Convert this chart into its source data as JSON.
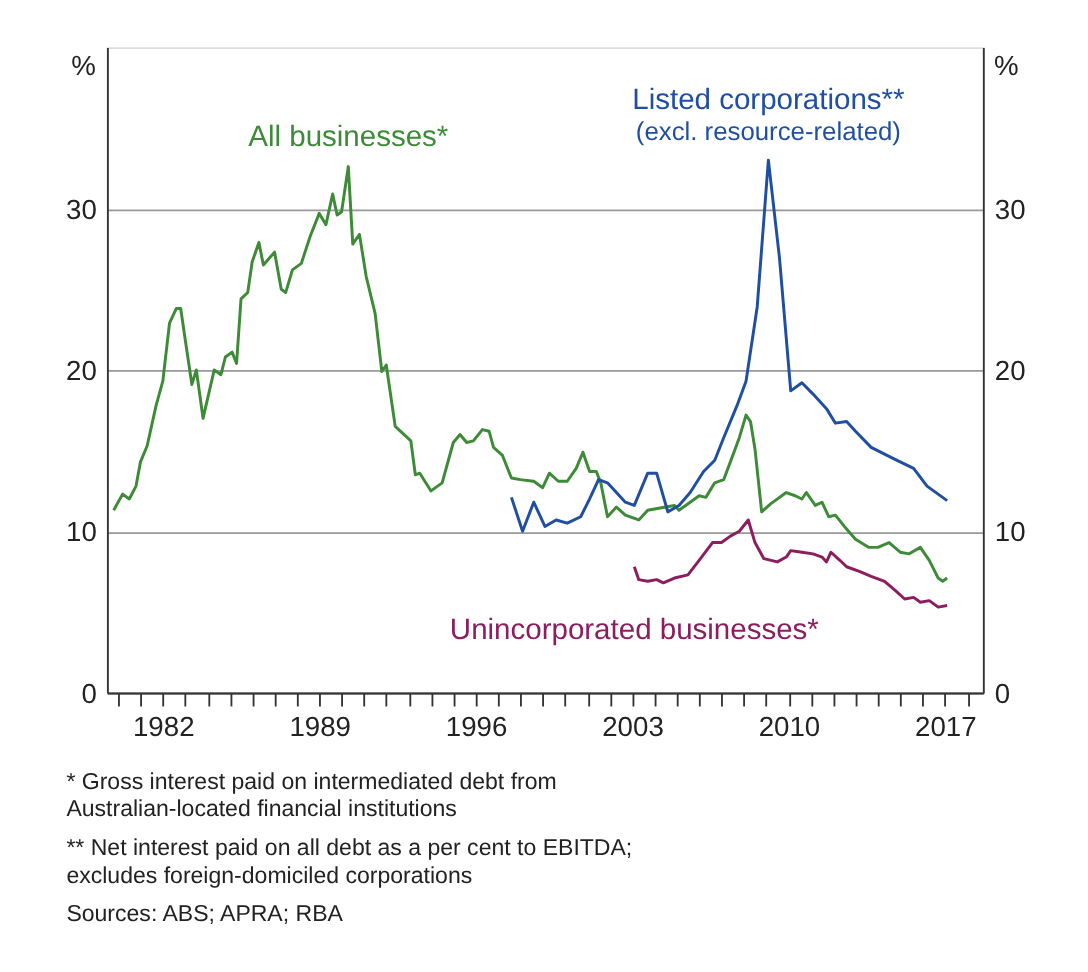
{
  "chart_data": {
    "type": "line",
    "ylabel": "%",
    "y2label": "%",
    "xlim": [
      1979.5,
      2018.7
    ],
    "xticks": [
      {
        "value": 1980,
        "label": null
      },
      {
        "value": 1981,
        "label": null
      },
      1982,
      {
        "value": 1983,
        "label": null
      },
      {
        "value": 1984,
        "label": null
      },
      {
        "value": 1985,
        "label": null
      },
      {
        "value": 1986,
        "label": null
      },
      {
        "value": 1987,
        "label": null
      },
      {
        "value": 1988,
        "label": null
      },
      1989,
      {
        "value": 1990,
        "label": null
      },
      {
        "value": 1991,
        "label": null
      },
      {
        "value": 1992,
        "label": null
      },
      {
        "value": 1993,
        "label": null
      },
      {
        "value": 1994,
        "label": null
      },
      {
        "value": 1995,
        "label": null
      },
      1996,
      {
        "value": 1997,
        "label": null
      },
      {
        "value": 1998,
        "label": null
      },
      {
        "value": 1999,
        "label": null
      },
      {
        "value": 2000,
        "label": null
      },
      {
        "value": 2001,
        "label": null
      },
      {
        "value": 2002,
        "label": null
      },
      2003,
      {
        "value": 2004,
        "label": null
      },
      {
        "value": 2005,
        "label": null
      },
      {
        "value": 2006,
        "label": null
      },
      {
        "value": 2007,
        "label": null
      },
      {
        "value": 2008,
        "label": null
      },
      {
        "value": 2009,
        "label": null
      },
      2010,
      {
        "value": 2011,
        "label": null
      },
      {
        "value": 2012,
        "label": null
      },
      {
        "value": 2013,
        "label": null
      },
      {
        "value": 2014,
        "label": null
      },
      {
        "value": 2015,
        "label": null
      },
      {
        "value": 2016,
        "label": null
      },
      2017,
      {
        "value": 2018,
        "label": null
      }
    ],
    "ylim": [
      0,
      40
    ],
    "yticks": [
      0,
      10,
      20,
      30
    ],
    "y2lim": [
      0,
      40
    ],
    "y2ticks": [
      0,
      10,
      20,
      30
    ],
    "grid": "y",
    "marker": "none",
    "line_style": "solid",
    "series": [
      {
        "name": "All businesses*",
        "color": "#3d8b37",
        "x": [
          1979.8,
          1980.2,
          1980.5,
          1980.8,
          1981.0,
          1981.3,
          1981.7,
          1982.0,
          1982.3,
          1982.6,
          1982.8,
          1983.0,
          1983.3,
          1983.5,
          1983.8,
          1984.3,
          1984.6,
          1984.8,
          1985.1,
          1985.3,
          1985.5,
          1985.8,
          1986.0,
          1986.3,
          1986.5,
          1987.0,
          1987.3,
          1987.5,
          1987.8,
          1988.2,
          1988.6,
          1989.0,
          1989.3,
          1989.6,
          1989.8,
          1990.0,
          1990.3,
          1990.5,
          1990.8,
          1991.1,
          1991.5,
          1991.8,
          1992.0,
          1992.4,
          1993.1,
          1993.3,
          1993.5,
          1994.0,
          1994.5,
          1995.0,
          1995.3,
          1995.6,
          1995.9,
          1996.3,
          1996.6,
          1996.8,
          1997.2,
          1997.6,
          1998.0,
          1998.6,
          1999.0,
          1999.3,
          1999.7,
          2000.1,
          2000.5,
          2000.8,
          2001.1,
          2001.4,
          2001.6,
          2001.9,
          2002.3,
          2002.7,
          2003.3,
          2003.7,
          2004.5,
          2004.9,
          2005.1,
          2005.6,
          2006.0,
          2006.3,
          2006.7,
          2007.1,
          2007.4,
          2007.8,
          2008.1,
          2008.3,
          2008.5,
          2008.8,
          2009.2,
          2009.9,
          2010.3,
          2010.6,
          2010.8,
          2011.2,
          2011.5,
          2011.8,
          2012.1,
          2012.5,
          2013.0,
          2013.6,
          2014.0,
          2014.5,
          2015.0,
          2015.4,
          2015.9,
          2016.3,
          2016.7,
          2016.9,
          2017.1
        ],
        "values": [
          11.3,
          12.3,
          12.0,
          12.8,
          14.3,
          15.3,
          17.8,
          19.3,
          22.9,
          23.8,
          23.8,
          21.9,
          19.1,
          20.0,
          17.0,
          20.0,
          19.7,
          20.8,
          21.1,
          20.4,
          24.4,
          24.8,
          26.7,
          27.9,
          26.5,
          27.3,
          25.0,
          24.8,
          26.2,
          26.6,
          28.3,
          29.7,
          29.0,
          30.9,
          29.6,
          29.8,
          32.6,
          27.8,
          28.4,
          25.8,
          23.5,
          19.9,
          20.3,
          16.5,
          15.6,
          13.5,
          13.6,
          12.5,
          13.0,
          15.5,
          16.0,
          15.5,
          15.6,
          16.3,
          16.2,
          15.2,
          14.7,
          13.3,
          13.2,
          13.1,
          12.7,
          13.6,
          13.1,
          13.1,
          13.9,
          14.9,
          13.7,
          13.7,
          13.0,
          10.9,
          11.5,
          11.0,
          10.7,
          11.3,
          11.5,
          11.6,
          11.3,
          11.8,
          12.2,
          12.1,
          13.0,
          13.2,
          14.3,
          15.8,
          17.2,
          16.8,
          15.1,
          11.2,
          11.7,
          12.4,
          12.2,
          12.0,
          12.4,
          11.6,
          11.8,
          10.9,
          11.0,
          10.3,
          9.5,
          9.0,
          9.0,
          9.3,
          8.7,
          8.6,
          9.0,
          8.2,
          7.1,
          6.9,
          7.1
        ]
      },
      {
        "name": "Listed corporations**\n(excl. resource-related)",
        "color": "#1f4ea3",
        "x": [
          1997.6,
          1998.1,
          1998.6,
          1999.1,
          1999.6,
          2000.1,
          2000.7,
          2001.1,
          2001.5,
          2001.9,
          2002.3,
          2002.7,
          2003.1,
          2003.7,
          2004.1,
          2004.6,
          2005.1,
          2005.6,
          2006.2,
          2006.7,
          2007.1,
          2007.7,
          2008.1,
          2008.6,
          2009.1,
          2009.6,
          2010.1,
          2010.6,
          2011.1,
          2011.7,
          2012.1,
          2012.6,
          2013.0,
          2013.7,
          2014.7,
          2015.6,
          2016.2,
          2017.1
        ],
        "values": [
          12.1,
          10.0,
          11.8,
          10.3,
          10.7,
          10.5,
          10.9,
          12.0,
          13.2,
          13.0,
          12.4,
          11.8,
          11.6,
          13.6,
          13.6,
          11.2,
          11.6,
          12.4,
          13.7,
          14.4,
          15.8,
          17.8,
          19.3,
          23.9,
          33.0,
          26.9,
          18.7,
          19.2,
          18.5,
          17.6,
          16.7,
          16.8,
          16.2,
          15.2,
          14.5,
          13.9,
          12.8,
          11.9
        ]
      },
      {
        "name": "Unincorporated businesses*",
        "color": "#8c1d5f",
        "x": [
          2003.1,
          2003.3,
          2003.7,
          2004.1,
          2004.4,
          2004.9,
          2005.5,
          2006.0,
          2006.6,
          2007.0,
          2007.4,
          2007.8,
          2008.2,
          2008.5,
          2008.9,
          2009.5,
          2009.9,
          2010.1,
          2010.6,
          2011.1,
          2011.5,
          2011.7,
          2011.9,
          2012.3,
          2012.6,
          2013.2,
          2013.7,
          2014.3,
          2014.8,
          2015.2,
          2015.6,
          2015.9,
          2016.3,
          2016.7,
          2017.1
        ],
        "values": [
          7.8,
          7.0,
          6.9,
          7.0,
          6.8,
          7.1,
          7.3,
          8.2,
          9.3,
          9.3,
          9.7,
          10.0,
          10.7,
          9.3,
          8.3,
          8.1,
          8.4,
          8.8,
          8.7,
          8.6,
          8.4,
          8.1,
          8.7,
          8.2,
          7.8,
          7.5,
          7.2,
          6.9,
          6.3,
          5.8,
          5.9,
          5.6,
          5.7,
          5.3,
          5.4
        ]
      }
    ],
    "annotations": [
      "* Gross interest paid on intermediated debt from Australian-located financial institutions",
      "** Net interest paid on all debt as a per cent to EBITDA; excludes foreign-domiciled corporations",
      "Sources: ABS; APRA; RBA"
    ]
  }
}
